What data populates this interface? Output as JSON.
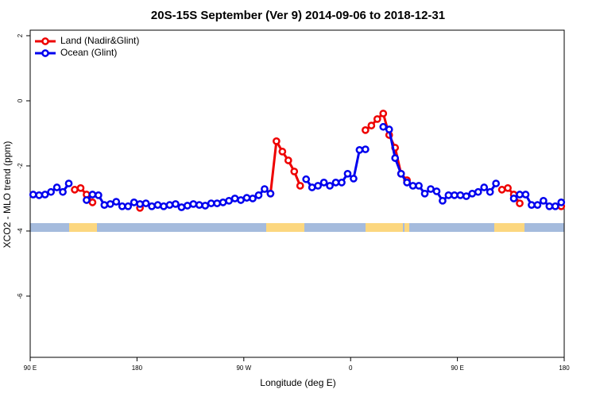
{
  "chart_data": {
    "type": "line",
    "title": "20S-15S September (Ver 9)   2014-09-06 to 2018-12-31",
    "x_label": "Longitude (deg E)",
    "y_label": "XCO2 - MLO trend (ppm)",
    "x": [
      92.5,
      97.5,
      102.5,
      107.5,
      112.5,
      117.5,
      122.5,
      127.5,
      132.5,
      137.5,
      142.5,
      147.5,
      152.5,
      157.5,
      162.5,
      167.5,
      172.5,
      177.5,
      182.5,
      187.5,
      192.5,
      197.5,
      202.5,
      207.5,
      212.5,
      217.5,
      222.5,
      227.5,
      232.5,
      237.5,
      242.5,
      247.5,
      252.5,
      257.5,
      262.5,
      267.5,
      272.5,
      277.5,
      282.5,
      287.5,
      292.5,
      297.5,
      302.5,
      307.5,
      312.5,
      317.5,
      322.5,
      327.5,
      332.5,
      337.5,
      342.5,
      347.5,
      352.5,
      357.5,
      362.5,
      367.5,
      372.5,
      377.5,
      382.5,
      387.5,
      392.5,
      397.5,
      402.5,
      407.5,
      412.5,
      417.5,
      422.5,
      427.5,
      432.5,
      437.5,
      442.5,
      447.5,
      452.5,
      457.5,
      462.5,
      467.5,
      472.5,
      477.5,
      482.5,
      487.5,
      492.5,
      497.5,
      502.5,
      507.5,
      512.5,
      517.5,
      522.5,
      527.5,
      532.5,
      537.5
    ],
    "series": [
      {
        "name": "Land (Nadir&Glint)",
        "color": "#ee0000",
        "values": [
          null,
          null,
          null,
          null,
          null,
          null,
          null,
          -2.73,
          -2.68,
          -2.88,
          -3.12,
          null,
          null,
          null,
          null,
          null,
          null,
          null,
          -3.29,
          null,
          null,
          null,
          null,
          null,
          null,
          null,
          null,
          null,
          null,
          null,
          null,
          null,
          null,
          null,
          null,
          null,
          null,
          null,
          null,
          null,
          -2.85,
          -1.24,
          -1.56,
          -1.83,
          -2.17,
          -2.61,
          null,
          null,
          null,
          null,
          null,
          null,
          null,
          null,
          null,
          null,
          -0.9,
          -0.76,
          -0.56,
          -0.39,
          -1.05,
          -1.44,
          -2.24,
          -2.44,
          null,
          null,
          null,
          null,
          null,
          null,
          null,
          null,
          null,
          null,
          null,
          null,
          null,
          null,
          null,
          -2.73,
          -2.68,
          -2.88,
          -3.15,
          null,
          null,
          null,
          null,
          null,
          null,
          -3.24
        ]
      },
      {
        "name": "Ocean (Glint)",
        "color": "#0000ee",
        "values": [
          -2.88,
          -2.9,
          -2.88,
          -2.8,
          -2.66,
          -2.8,
          -2.54,
          null,
          null,
          -3.05,
          -2.88,
          -2.9,
          -3.2,
          -3.17,
          -3.1,
          -3.24,
          -3.24,
          -3.12,
          -3.17,
          -3.15,
          -3.24,
          -3.2,
          -3.24,
          -3.2,
          -3.17,
          -3.27,
          -3.22,
          -3.17,
          -3.2,
          -3.22,
          -3.15,
          -3.15,
          -3.12,
          -3.07,
          -3.0,
          -3.05,
          -2.98,
          -3.0,
          -2.9,
          -2.71,
          -2.85,
          null,
          null,
          null,
          null,
          null,
          -2.41,
          -2.66,
          -2.61,
          -2.51,
          -2.61,
          -2.51,
          -2.51,
          -2.24,
          -2.39,
          -1.51,
          -1.49,
          null,
          null,
          -0.8,
          -0.88,
          -1.76,
          -2.24,
          -2.51,
          -2.61,
          -2.61,
          -2.85,
          -2.71,
          -2.78,
          -3.07,
          -2.9,
          -2.9,
          -2.9,
          -2.93,
          -2.85,
          -2.8,
          -2.66,
          -2.8,
          -2.54,
          null,
          null,
          -3.0,
          -2.88,
          -2.88,
          -3.2,
          -3.2,
          -3.07,
          -3.24,
          -3.24,
          -3.12
        ]
      }
    ],
    "xlim": [
      90,
      540
    ],
    "xticks": [
      {
        "value": 90,
        "label": "90 E"
      },
      180,
      {
        "value": 270,
        "label": "90 W"
      },
      {
        "value": 360,
        "label": "0"
      },
      {
        "value": 450,
        "label": "90 E"
      },
      {
        "value": 540,
        "label": "180"
      }
    ],
    "ylim": [
      -7.88,
      2.17
    ],
    "yticks": [
      2,
      0,
      -2,
      -4,
      -6
    ],
    "legend": "top-left"
  }
}
